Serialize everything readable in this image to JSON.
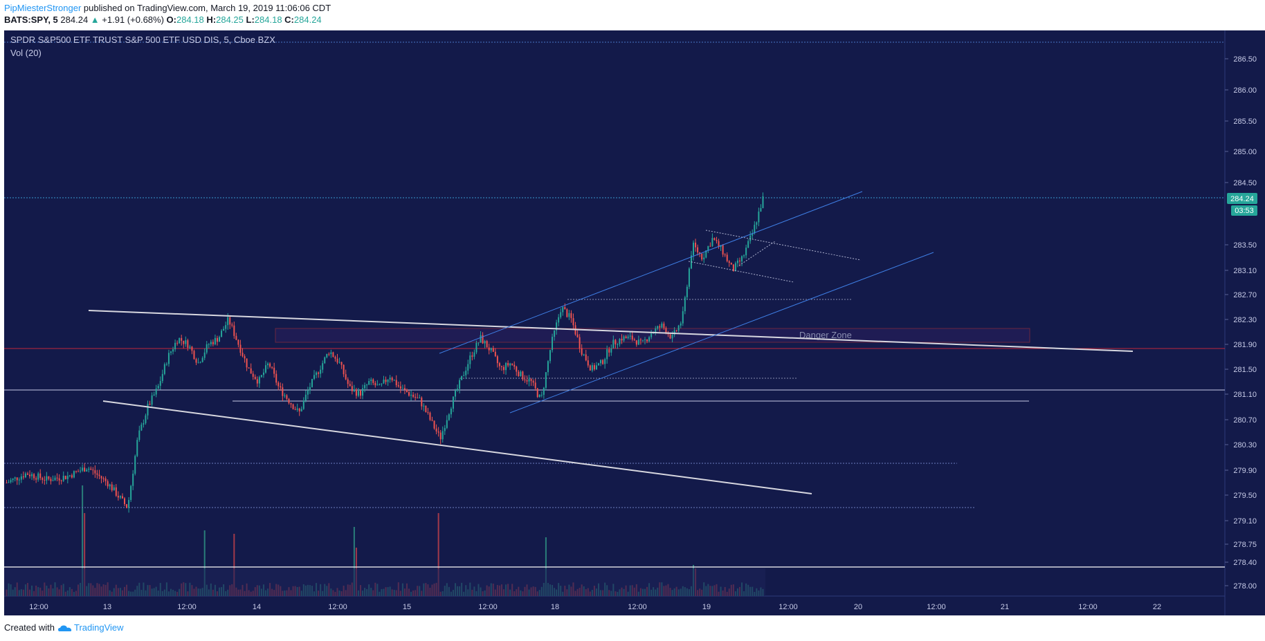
{
  "header": {
    "author": "PipMiesterStronger",
    "published_text": "published on TradingView.com, March 19, 2019 11:06:06 CDT",
    "symbol": "BATS:SPY, 5",
    "last": "284.24",
    "change": "+1.91 (+0.68%)",
    "o_label": "O:",
    "o_value": "284.18",
    "h_label": "H:",
    "h_value": "284.25",
    "l_label": "L:",
    "l_value": "284.18",
    "c_label": "C:",
    "c_value": "284.24"
  },
  "footer": {
    "created_with": "Created with",
    "brand": "TradingView"
  },
  "colors": {
    "background": "#131a4a",
    "up": "#26a69a",
    "down": "#ef5350",
    "trend_white": "#d8d8e0",
    "channel_blue": "#3f7fe6",
    "danger_red": "#c2283a",
    "price_badge": "#26a69a"
  },
  "chart_data": {
    "type": "candlestick",
    "title": "SPDR S&P500 ETF TRUST S&P 500 ETF USD DIS, 5, Cboe BZX",
    "indicator": "Vol (20)",
    "y_ticks": [
      "286.50",
      "286.00",
      "285.50",
      "285.00",
      "284.50",
      "283.50",
      "283.10",
      "282.70",
      "282.30",
      "281.90",
      "281.50",
      "281.10",
      "280.70",
      "280.30",
      "279.90",
      "279.50",
      "279.10",
      "278.75",
      "278.40",
      "278.00"
    ],
    "x_ticks": [
      "12:00",
      "13",
      "12:00",
      "14",
      "12:00",
      "15",
      "12:00",
      "18",
      "12:00",
      "19",
      "12:00",
      "20",
      "12:00",
      "21",
      "12:00",
      "22"
    ],
    "last_price": "284.24",
    "countdown": "03:53",
    "annotation": "Danger Zone",
    "ylim": [
      277.8,
      286.9
    ],
    "price_path": [
      [
        0,
        279.7
      ],
      [
        2,
        279.85
      ],
      [
        4,
        279.75
      ],
      [
        6,
        279.8
      ],
      [
        8,
        279.95
      ],
      [
        10,
        279.7
      ],
      [
        12,
        279.3
      ],
      [
        13,
        280.4
      ],
      [
        14,
        280.9
      ],
      [
        15,
        281.2
      ],
      [
        16,
        281.7
      ],
      [
        17,
        282.0
      ],
      [
        18,
        281.9
      ],
      [
        19,
        281.6
      ],
      [
        20,
        281.9
      ],
      [
        21,
        282.0
      ],
      [
        22,
        282.3
      ],
      [
        23,
        281.9
      ],
      [
        24,
        281.5
      ],
      [
        25,
        281.3
      ],
      [
        26,
        281.6
      ],
      [
        27,
        281.2
      ],
      [
        28,
        281.0
      ],
      [
        29,
        280.8
      ],
      [
        30,
        281.2
      ],
      [
        31,
        281.5
      ],
      [
        32,
        281.8
      ],
      [
        33,
        281.6
      ],
      [
        34,
        281.2
      ],
      [
        35,
        281.1
      ],
      [
        36,
        281.3
      ],
      [
        37,
        281.2
      ],
      [
        38,
        281.4
      ],
      [
        39,
        281.2
      ],
      [
        40,
        281.1
      ],
      [
        41,
        281.0
      ],
      [
        42,
        280.7
      ],
      [
        43,
        280.4
      ],
      [
        44,
        280.9
      ],
      [
        45,
        281.3
      ],
      [
        46,
        281.7
      ],
      [
        47,
        282.0
      ],
      [
        48,
        281.8
      ],
      [
        49,
        281.5
      ],
      [
        50,
        281.6
      ],
      [
        51,
        281.4
      ],
      [
        52,
        281.3
      ],
      [
        53,
        281.0
      ],
      [
        54,
        281.9
      ],
      [
        55,
        282.5
      ],
      [
        56,
        282.3
      ],
      [
        57,
        281.8
      ],
      [
        58,
        281.5
      ],
      [
        59,
        281.6
      ],
      [
        60,
        281.9
      ],
      [
        61,
        282.0
      ],
      [
        62,
        282.0
      ],
      [
        63,
        281.9
      ],
      [
        64,
        282.1
      ],
      [
        65,
        282.2
      ],
      [
        66,
        282.0
      ],
      [
        67,
        282.3
      ],
      [
        68,
        283.5
      ],
      [
        69,
        283.3
      ],
      [
        70,
        283.6
      ],
      [
        71,
        283.4
      ],
      [
        72,
        283.1
      ],
      [
        73,
        283.3
      ],
      [
        74,
        283.7
      ],
      [
        75,
        284.24
      ]
    ]
  }
}
